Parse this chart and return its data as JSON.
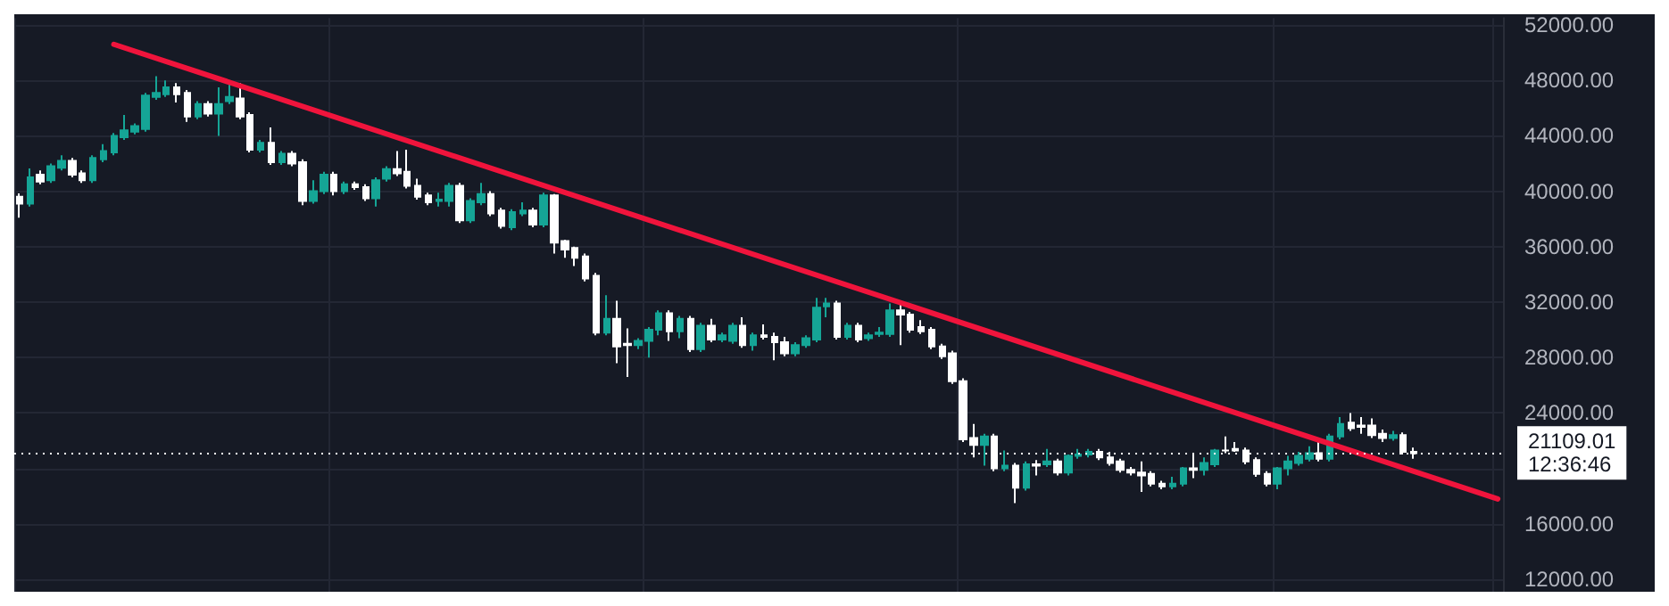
{
  "chart_data": {
    "type": "candlestick",
    "categories": [
      null,
      null,
      null,
      null,
      null,
      null,
      null,
      null,
      null,
      null,
      null,
      null,
      null,
      null,
      null,
      null,
      null,
      null,
      null,
      null,
      null,
      null,
      null,
      null,
      null,
      null,
      null,
      null,
      null,
      null,
      null,
      null,
      null,
      null,
      null,
      null,
      null,
      null,
      null,
      null,
      null,
      null,
      null,
      null,
      null,
      null,
      null,
      null,
      null,
      null,
      null,
      null,
      null,
      null,
      null,
      null,
      null,
      null,
      null,
      null,
      null,
      null,
      null,
      null,
      null,
      null,
      null,
      null,
      null,
      null,
      null,
      null,
      null,
      null,
      null,
      null,
      null,
      null,
      null,
      null,
      null,
      null,
      null,
      null,
      null,
      null,
      null,
      null,
      null,
      null,
      null,
      null,
      null,
      null,
      null,
      null,
      null,
      null,
      null,
      null,
      null,
      null,
      null,
      null,
      null,
      null,
      null,
      null,
      null,
      null,
      null,
      null,
      null,
      null,
      null,
      null,
      null,
      null,
      null,
      null,
      null,
      null,
      null,
      null,
      null,
      null,
      null,
      null,
      null,
      null,
      null,
      null,
      null,
      null,
      null,
      null,
      null,
      null,
      null,
      null,
      null,
      null
    ],
    "series": [
      {
        "colors": [
          "#ffffff",
          "#15a596",
          "#ffffff",
          "#15a596",
          "#15a596",
          "#ffffff",
          "#ffffff",
          "#15a596",
          "#15a596",
          "#15a596",
          "#15a596",
          "#15a596",
          "#15a596",
          "#15a596",
          "#15a596",
          "#ffffff",
          "#ffffff",
          "#15a596",
          "#ffffff",
          "#15a596",
          "#15a596",
          "#ffffff",
          "#ffffff",
          "#15a596",
          "#ffffff",
          "#15a596",
          "#ffffff",
          "#ffffff",
          "#15a596",
          "#15a596",
          "#ffffff",
          "#15a596",
          "#ffffff",
          "#ffffff",
          "#15a596",
          "#15a596",
          "#ffffff",
          "#ffffff",
          "#ffffff",
          "#ffffff",
          "#15a596",
          "#15a596",
          "#ffffff",
          "#15a596",
          "#15a596",
          "#ffffff",
          "#ffffff",
          "#15a596",
          "#15a596",
          "#ffffff",
          "#15a596",
          "#ffffff",
          "#ffffff",
          "#ffffff",
          "#ffffff",
          "#ffffff",
          "#15a596",
          "#ffffff",
          "#ffffff",
          "#15a596",
          "#15a596",
          "#15a596",
          "#ffffff",
          "#15a596",
          "#ffffff",
          "#15a596",
          "#ffffff",
          "#15a596",
          "#15a596",
          "#ffffff",
          "#15a596",
          "#ffffff",
          "#ffffff",
          "#ffffff",
          "#15a596",
          "#15a596",
          "#15a596",
          "#15a596",
          "#ffffff",
          "#15a596",
          "#ffffff",
          "#15a596",
          "#15a596",
          "#15a596",
          "#ffffff",
          "#ffffff",
          "#ffffff",
          "#ffffff",
          "#ffffff",
          "#ffffff",
          "#ffffff",
          "#ffffff",
          "#15a596",
          "#ffffff",
          "#15a596",
          "#ffffff",
          "#15a596",
          "#ffffff",
          "#15a596",
          "#ffffff",
          "#15a596",
          "#15a596",
          "#15a596",
          "#ffffff",
          "#ffffff",
          "#ffffff",
          "#ffffff",
          "#ffffff",
          "#ffffff",
          "#ffffff",
          "#15a596",
          "#15a596",
          "#ffffff",
          "#15a596",
          "#15a596",
          "#ffffff",
          "#ffffff",
          "#ffffff",
          "#ffffff",
          "#ffffff",
          "#15a596",
          "#15a596",
          "#15a596",
          "#15a596",
          "#ffffff",
          "#15a596",
          "#15a596",
          "#ffffff",
          "#ffffff",
          "#ffffff",
          "#ffffff",
          "#15a596",
          "#ffffff",
          "#ffffff",
          null,
          null,
          null,
          null,
          null,
          null,
          null,
          null
        ],
        "ohlc": [
          [
            39600,
            39850,
            38100,
            39100
          ],
          [
            39100,
            41650,
            38900,
            41000
          ],
          [
            41200,
            41500,
            40500,
            40700
          ],
          [
            40800,
            42000,
            40600,
            41800
          ],
          [
            41700,
            42600,
            41500,
            42200
          ],
          [
            42200,
            42400,
            41000,
            41200
          ],
          [
            41300,
            41500,
            40600,
            40800
          ],
          [
            40800,
            42600,
            40600,
            42400
          ],
          [
            42300,
            43400,
            42100,
            42900
          ],
          [
            42800,
            44200,
            42600,
            44000
          ],
          [
            43900,
            45500,
            43700,
            44400
          ],
          [
            44300,
            44900,
            44100,
            44700
          ],
          [
            44500,
            47100,
            44300,
            46900
          ],
          [
            46800,
            48300,
            46600,
            47100
          ],
          [
            47000,
            48000,
            46800,
            47500
          ],
          [
            47500,
            47800,
            46400,
            47000
          ],
          [
            47100,
            47300,
            45000,
            45400
          ],
          [
            45400,
            46500,
            45200,
            46300
          ],
          [
            46300,
            46500,
            45400,
            45600
          ],
          [
            45600,
            47500,
            44000,
            46300
          ],
          [
            46500,
            47800,
            46300,
            46800
          ],
          [
            46700,
            47800,
            45200,
            45400
          ],
          [
            45500,
            45700,
            42800,
            43000
          ],
          [
            43000,
            43700,
            42800,
            43500
          ],
          [
            43500,
            44600,
            41900,
            42100
          ],
          [
            42100,
            42900,
            41900,
            42700
          ],
          [
            42700,
            42900,
            41800,
            42000
          ],
          [
            42100,
            42300,
            39000,
            39300
          ],
          [
            39300,
            40800,
            39100,
            40000
          ],
          [
            40000,
            41400,
            39800,
            41200
          ],
          [
            41200,
            41400,
            39700,
            40000
          ],
          [
            40000,
            40700,
            39800,
            40500
          ],
          [
            40500,
            40700,
            40100,
            40300
          ],
          [
            40300,
            40500,
            39300,
            39500
          ],
          [
            39500,
            41000,
            38900,
            40800
          ],
          [
            40900,
            41800,
            40700,
            41600
          ],
          [
            41600,
            42900,
            41100,
            41300
          ],
          [
            41400,
            43000,
            40200,
            40400
          ],
          [
            40400,
            40900,
            39400,
            39600
          ],
          [
            39700,
            39900,
            39000,
            39200
          ],
          [
            39300,
            39900,
            38900,
            39400
          ],
          [
            39300,
            40600,
            38900,
            40400
          ],
          [
            40400,
            40600,
            37700,
            37900
          ],
          [
            37900,
            39500,
            37700,
            39300
          ],
          [
            39200,
            40600,
            39000,
            39800
          ],
          [
            39800,
            40000,
            38200,
            38400
          ],
          [
            38600,
            38800,
            37300,
            37500
          ],
          [
            37400,
            38700,
            37200,
            38500
          ],
          [
            38400,
            39200,
            38200,
            38600
          ],
          [
            38600,
            38800,
            37400,
            37600
          ],
          [
            37600,
            39900,
            37400,
            39700
          ],
          [
            39700,
            39800,
            35500,
            36300
          ],
          [
            36400,
            36500,
            35200,
            35800
          ],
          [
            35900,
            36000,
            34600,
            35200
          ],
          [
            35300,
            35500,
            33500,
            33700
          ],
          [
            33900,
            34100,
            29600,
            29800
          ],
          [
            29800,
            32500,
            29600,
            30800
          ],
          [
            30800,
            32100,
            27600,
            28800
          ],
          [
            29000,
            30100,
            26600,
            28900
          ],
          [
            28900,
            29400,
            28600,
            29200
          ],
          [
            29200,
            30200,
            28000,
            30000
          ],
          [
            30000,
            31400,
            29600,
            31200
          ],
          [
            31200,
            31400,
            29200,
            29900
          ],
          [
            29900,
            31000,
            29400,
            30800
          ],
          [
            30800,
            31000,
            28400,
            28600
          ],
          [
            28600,
            30500,
            28400,
            30300
          ],
          [
            30300,
            30800,
            29100,
            29300
          ],
          [
            29300,
            29800,
            29100,
            29600
          ],
          [
            29200,
            30500,
            29000,
            30300
          ],
          [
            30300,
            30900,
            28700,
            28900
          ],
          [
            28900,
            29800,
            28500,
            29600
          ],
          [
            29600,
            30400,
            29300,
            29500
          ],
          [
            29500,
            29800,
            27800,
            29100
          ],
          [
            29100,
            29500,
            28100,
            28300
          ],
          [
            28300,
            29100,
            28100,
            28900
          ],
          [
            28900,
            29600,
            28700,
            29400
          ],
          [
            29300,
            32300,
            29100,
            31600
          ],
          [
            31700,
            32300,
            30900,
            31900
          ],
          [
            31900,
            32100,
            29300,
            29500
          ],
          [
            29500,
            30500,
            29300,
            30300
          ],
          [
            30300,
            30500,
            29100,
            29300
          ],
          [
            29400,
            29800,
            29200,
            29600
          ],
          [
            29700,
            30200,
            29500,
            29800
          ],
          [
            29700,
            31900,
            29500,
            31400
          ],
          [
            31400,
            31800,
            28900,
            31100
          ],
          [
            31100,
            31300,
            29800,
            30000
          ],
          [
            30200,
            30700,
            29700,
            29900
          ],
          [
            30000,
            30200,
            28600,
            28800
          ],
          [
            28800,
            29000,
            27900,
            28100
          ],
          [
            28300,
            28500,
            26100,
            26300
          ],
          [
            26300,
            26500,
            21900,
            22100
          ],
          [
            22200,
            23200,
            20800,
            21700
          ],
          [
            21700,
            22500,
            20200,
            22300
          ],
          [
            22300,
            22500,
            19800,
            20000
          ],
          [
            20000,
            21300,
            19800,
            20200
          ],
          [
            20200,
            20400,
            17500,
            18600
          ],
          [
            18600,
            20500,
            18400,
            20300
          ],
          [
            20300,
            20600,
            19500,
            20200
          ],
          [
            20300,
            21400,
            20100,
            20500
          ],
          [
            20500,
            20700,
            19500,
            19700
          ],
          [
            19700,
            21000,
            19500,
            20900
          ],
          [
            20900,
            21400,
            20700,
            21000
          ],
          [
            21000,
            21400,
            20800,
            21200
          ],
          [
            21200,
            21400,
            20600,
            20800
          ],
          [
            20800,
            21200,
            20200,
            20400
          ],
          [
            20500,
            20700,
            19700,
            19900
          ],
          [
            19900,
            20100,
            19500,
            19700
          ],
          [
            19700,
            20500,
            18300,
            19500
          ],
          [
            19600,
            19800,
            18700,
            18900
          ],
          [
            18900,
            19100,
            18500,
            18700
          ],
          [
            18700,
            19400,
            18500,
            18900
          ],
          [
            18900,
            20100,
            18700,
            20000
          ],
          [
            20000,
            21000,
            19300,
            19900
          ],
          [
            19900,
            20800,
            19500,
            20400
          ],
          [
            20300,
            21400,
            20100,
            21300
          ],
          [
            21300,
            22300,
            21100,
            21300
          ],
          [
            21400,
            21900,
            21200,
            21300
          ],
          [
            21300,
            21500,
            20300,
            20500
          ],
          [
            20600,
            20800,
            19400,
            19600
          ],
          [
            19600,
            19800,
            18700,
            18900
          ],
          [
            18900,
            20100,
            18500,
            20000
          ],
          [
            20000,
            20900,
            19500,
            20500
          ],
          [
            20400,
            21200,
            20200,
            20900
          ],
          [
            20700,
            21600,
            20500,
            21100
          ],
          [
            21100,
            21900,
            20500,
            20700
          ],
          [
            20700,
            22500,
            20500,
            22300
          ],
          [
            22300,
            23700,
            22100,
            23200
          ],
          [
            23300,
            24000,
            22700,
            22900
          ],
          [
            23100,
            23700,
            22500,
            23000
          ],
          [
            23100,
            23600,
            22200,
            22400
          ],
          [
            22500,
            22800,
            21900,
            22200
          ],
          [
            22200,
            22700,
            22000,
            22400
          ],
          [
            22400,
            22600,
            21000,
            21200
          ],
          [
            21200,
            21500,
            20700,
            21100
          ],
          null,
          null,
          null,
          null,
          null,
          null,
          null,
          null
        ]
      },
      {
        "type": "line",
        "color": "#f0143c",
        "values": [
          null,
          null,
          null,
          null,
          null,
          null,
          null,
          null,
          null,
          50600,
          null,
          null,
          null,
          null,
          null,
          null,
          null,
          null,
          null,
          null,
          null,
          null,
          null,
          null,
          null,
          null,
          null,
          null,
          null,
          null,
          null,
          null,
          null,
          null,
          null,
          null,
          null,
          null,
          null,
          null,
          null,
          null,
          null,
          null,
          null,
          null,
          null,
          null,
          null,
          null,
          null,
          null,
          null,
          null,
          null,
          null,
          null,
          null,
          null,
          null,
          null,
          null,
          null,
          null,
          null,
          null,
          null,
          null,
          null,
          null,
          null,
          null,
          null,
          null,
          null,
          null,
          null,
          null,
          null,
          null,
          null,
          null,
          null,
          null,
          null,
          null,
          null,
          null,
          null,
          null,
          null,
          null,
          null,
          null,
          null,
          null,
          null,
          null,
          null,
          null,
          null,
          null,
          null,
          null,
          null,
          null,
          null,
          null,
          null,
          null,
          null,
          null,
          null,
          null,
          null,
          null,
          null,
          null,
          null,
          null,
          null,
          null,
          null,
          null,
          null,
          null,
          null,
          null,
          null,
          null,
          null,
          null,
          null,
          null,
          null,
          null,
          null,
          null,
          null,
          null,
          null,
          17800
        ]
      }
    ],
    "ylim": [
      11100,
      52500
    ],
    "yticks": [
      {
        "value": 12000,
        "label": "12000.00"
      },
      {
        "value": 16000,
        "label": "16000.00"
      },
      {
        "value": 20000,
        "label": null
      },
      {
        "value": 24000,
        "label": "24000.00"
      },
      {
        "value": 28000,
        "label": "28000.00"
      },
      {
        "value": 32000,
        "label": "32000.00"
      },
      {
        "value": 36000,
        "label": "36000.00"
      },
      {
        "value": 40000,
        "label": "40000.00"
      },
      {
        "value": 44000,
        "label": "44000.00"
      },
      {
        "value": 48000,
        "label": "48000.00"
      },
      {
        "value": 52000,
        "label": "52000.00"
      }
    ],
    "ref_lines": [
      {
        "axis": "y",
        "value": 21109.01,
        "label": "21109.01",
        "color": "#ffffff",
        "line_style": "dotted"
      }
    ],
    "annotations": [
      "12:36:46"
    ],
    "grid": true,
    "tick_labels": "y"
  }
}
